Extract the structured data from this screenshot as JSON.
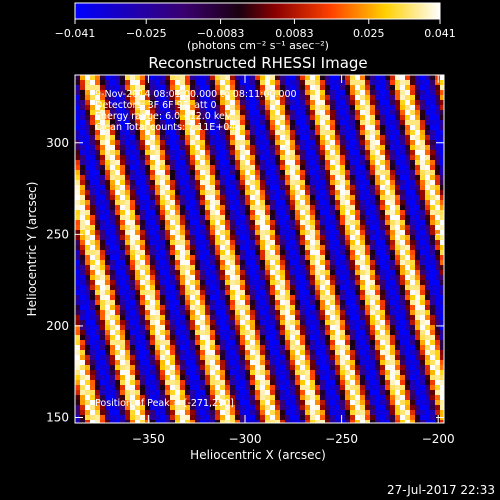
{
  "chart_data": {
    "type": "heatmap",
    "title": "Reconstructed RHESSI Image",
    "xlabel": "Heliocentric X (arcsec)",
    "ylabel": "Heliocentric Y (arcsec)",
    "xlim": [
      -388,
      -197
    ],
    "ylim": [
      147,
      337
    ],
    "x_ticks": [
      -350,
      -300,
      -250,
      -200
    ],
    "y_ticks": [
      150,
      200,
      250,
      300
    ],
    "colorbar": {
      "range": [
        -0.041,
        0.041
      ],
      "ticks": [
        -0.041,
        -0.025,
        -0.0083,
        0.0083,
        0.025,
        0.041
      ],
      "tick_labels": [
        "−0.041",
        "−0.025",
        "−0.0083",
        "0.0083",
        "0.025",
        "0.041"
      ],
      "unit_label": "(photons cm⁻² s⁻¹ asec⁻²)"
    },
    "annotations": [
      "9-Nov-2014 08:01:00.000 to 08:11:00.000",
      "Detectors: 3F 6F 9F, att 0",
      "Energy range: 6.0 - 12.0 keV",
      "Clean    Total counts: 7.11E+04"
    ],
    "peak_label": "Position of Peak = [-271,290]",
    "pattern": {
      "stripe_period_arcsec": 23,
      "stripe_tilt": 0.26,
      "peak_value": 0.041
    }
  },
  "footer": {
    "timestamp": "27-Jul-2017 22:33"
  }
}
